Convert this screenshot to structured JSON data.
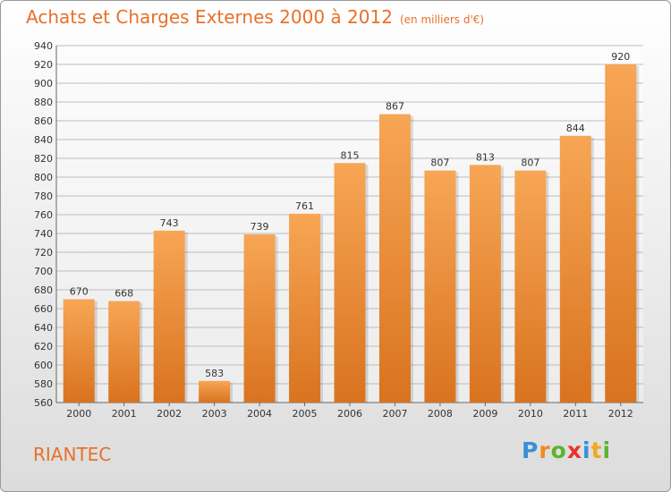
{
  "chart_data": {
    "type": "bar",
    "title": "Achats et Charges Externes 2000 à 2012",
    "subtitle": "(en milliers d'€)",
    "categories": [
      "2000",
      "2001",
      "2002",
      "2003",
      "2004",
      "2005",
      "2006",
      "2007",
      "2008",
      "2009",
      "2010",
      "2011",
      "2012"
    ],
    "values": [
      670,
      668,
      743,
      583,
      739,
      761,
      815,
      867,
      807,
      813,
      807,
      844,
      920
    ],
    "ylim": [
      560,
      940
    ],
    "ytick_step": 20,
    "grid": true,
    "bar_color_top": "#f7a655",
    "bar_color_bottom": "#d9731f"
  },
  "footer": {
    "place_name": "RIANTEC",
    "logo": {
      "letters": [
        {
          "char": "P",
          "color": "#3a8fd6"
        },
        {
          "char": "r",
          "color": "#f08a1e"
        },
        {
          "char": "o",
          "color": "#5ab52e"
        },
        {
          "char": "x",
          "color": "#e8332a"
        },
        {
          "char": "i",
          "color": "#3a8fd6"
        },
        {
          "char": "t",
          "color": "#f0a81e"
        },
        {
          "char": "i",
          "color": "#5ab52e"
        }
      ]
    }
  }
}
